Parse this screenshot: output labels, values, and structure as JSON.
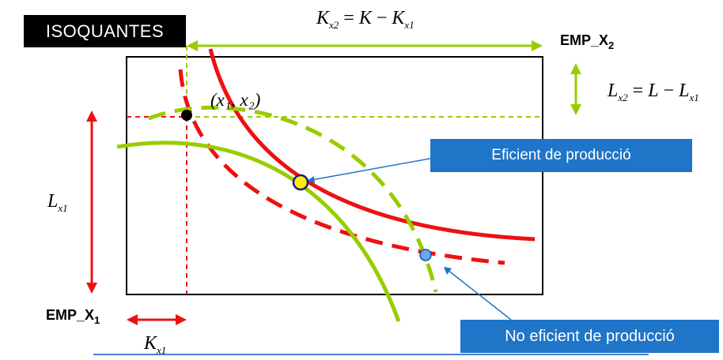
{
  "title": "ISOQUANTES",
  "firm_top": {
    "name": "EMP_X",
    "sub": "2"
  },
  "firm_bottom": {
    "name": "EMP_X",
    "sub": "1"
  },
  "eq_top": {
    "lhs": "K",
    "lhs_sub": "x2",
    "rhs_a": "K",
    "rhs_b": "K",
    "rhs_b_sub": "x1"
  },
  "eq_right": {
    "lhs": "L",
    "lhs_sub": "x2",
    "rhs_a": "L",
    "rhs_b": "L",
    "rhs_b_sub": "x1"
  },
  "label_left": {
    "var": "L",
    "sub": "x1"
  },
  "label_bottom": {
    "var": "K",
    "sub": "x1"
  },
  "point_label": "(x₁, x₂)",
  "callouts": {
    "efficient": "Eficient de producció",
    "not_efficient": "No eficient de producció"
  },
  "colors": {
    "red": "#ee1111",
    "green": "#99cc00",
    "blue": "#1f75c8",
    "yellow": "#ffee00",
    "light_blue": "#66aaee"
  }
}
